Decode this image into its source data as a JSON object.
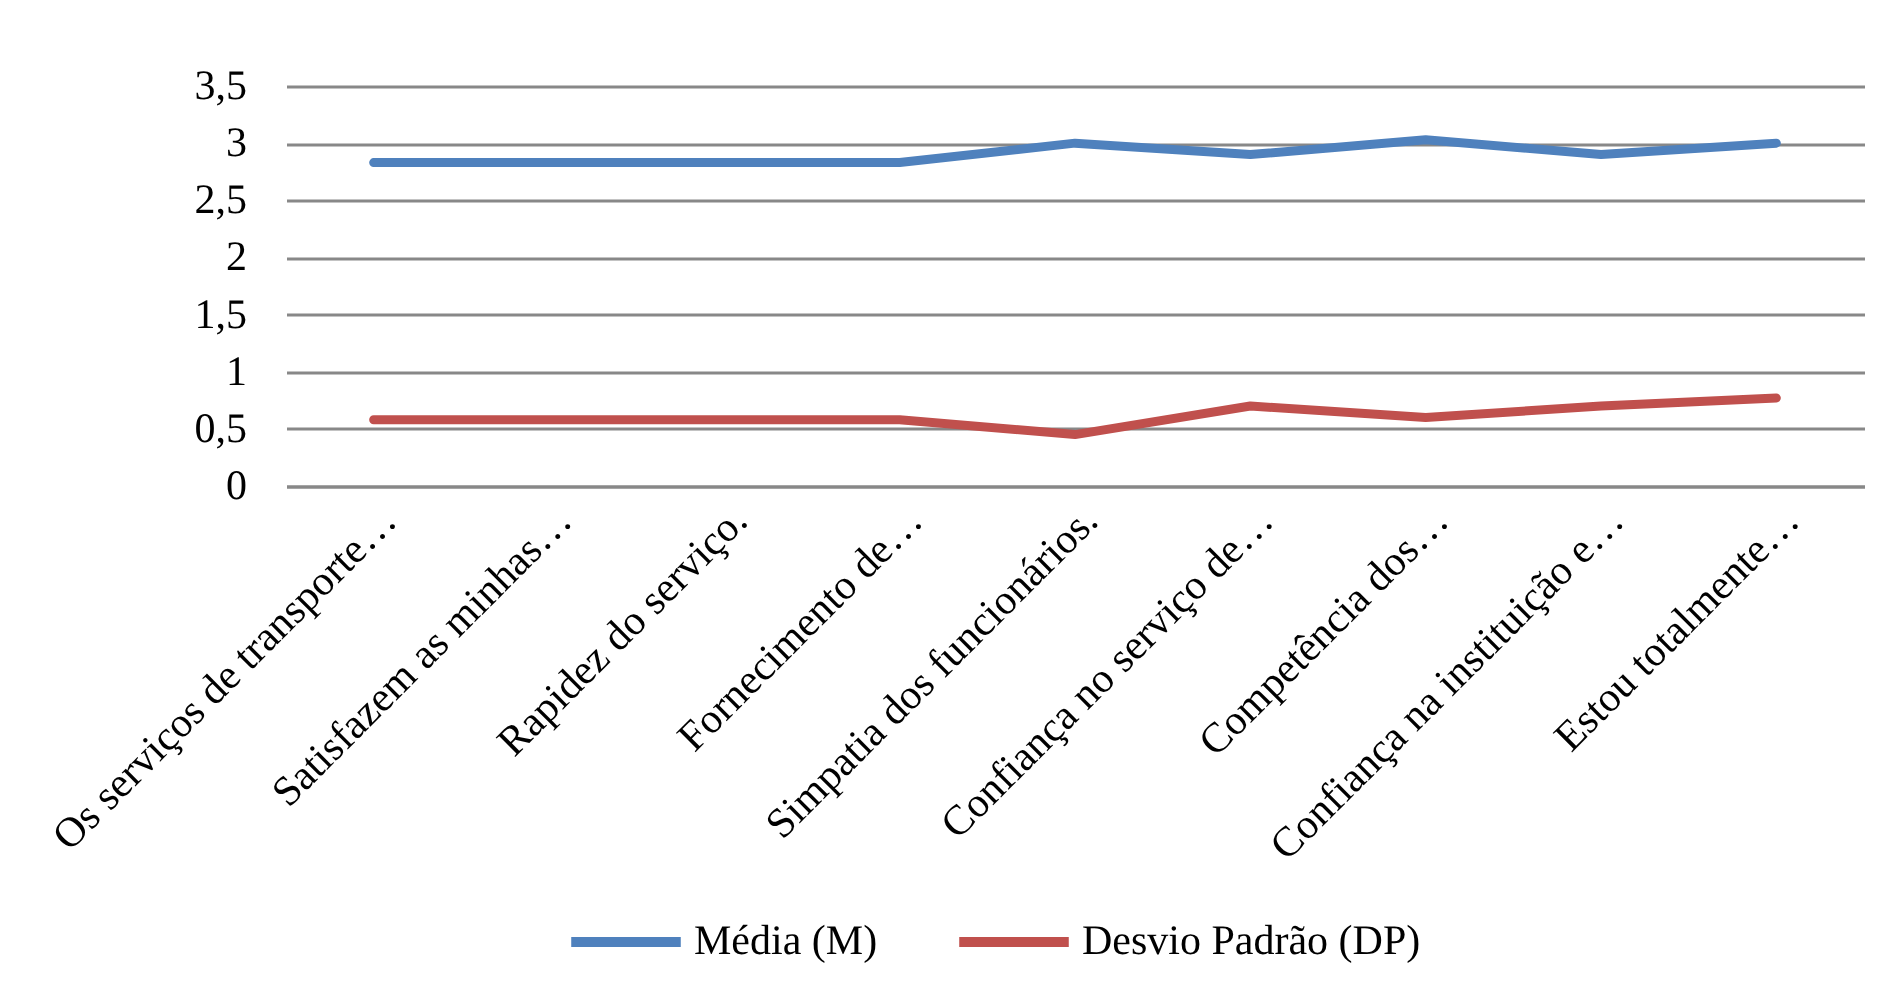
{
  "chart_data": {
    "type": "line",
    "categories": [
      "Os serviços de transporte…",
      "Satisfazem as minhas…",
      "Rapidez do serviço.",
      "Fornecimento de…",
      "Simpatia dos funcionários.",
      "Confiança no serviço de…",
      "Competência dos…",
      "Confiança na instituição e…",
      "Estou totalmente…"
    ],
    "series": [
      {
        "name": "Média (M)",
        "color": "#4f81bd",
        "values": [
          2.83,
          2.83,
          2.83,
          2.83,
          3.0,
          2.9,
          3.03,
          2.9,
          3.0
        ]
      },
      {
        "name": "Desvio Padrão (DP)",
        "color": "#c0504d",
        "values": [
          0.58,
          0.58,
          0.58,
          0.58,
          0.45,
          0.7,
          0.6,
          0.7,
          0.77
        ]
      }
    ],
    "ylim": [
      0,
      3.5
    ],
    "yticks": [
      0,
      {
        "value": 0.5,
        "label": "0,5"
      },
      1,
      {
        "value": 1.5,
        "label": "1,5"
      },
      2,
      {
        "value": 2.5,
        "label": "2,5"
      },
      3,
      {
        "value": 3.5,
        "label": "3,5"
      }
    ],
    "grid": "y",
    "legend": "bottom",
    "line_style": "solid"
  }
}
